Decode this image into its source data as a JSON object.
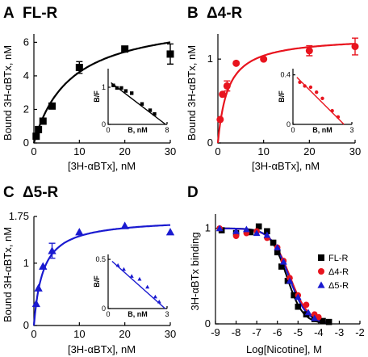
{
  "panels": [
    {
      "letter": "A",
      "title": "FL-R"
    },
    {
      "letter": "B",
      "title": "Δ4-R"
    },
    {
      "letter": "C",
      "title": "Δ5-R"
    },
    {
      "letter": "D",
      "title": ""
    }
  ],
  "colors": {
    "fl": "#000000",
    "d4": "#e8141e",
    "d5": "#1a1ad0"
  },
  "chart_data": [
    {
      "type": "scatter",
      "title": "FL-R",
      "xlabel": "[3H-αBTx], nM",
      "ylabel": "Bound 3H-αBTx, nM",
      "xlim": [
        0,
        30
      ],
      "ylim": [
        0,
        6.5
      ],
      "xticks": [
        0,
        10,
        20,
        30
      ],
      "yticks": [
        0,
        2,
        4,
        6
      ],
      "points": {
        "x": [
          0.5,
          1,
          2,
          4,
          10,
          20,
          30
        ],
        "y": [
          0.4,
          0.8,
          1.3,
          2.2,
          4.5,
          5.6,
          5.3
        ],
        "err": [
          0,
          0,
          0,
          0,
          0.35,
          0,
          0.6
        ]
      },
      "fit": {
        "Bmax": 7.6,
        "Kd": 8.0
      },
      "inset": {
        "xlabel": "B, nM",
        "ylabel": "B/F",
        "xlim": [
          0,
          8
        ],
        "ylim": [
          0,
          1.5
        ],
        "xticks": [
          0,
          8
        ],
        "yticks": [
          0,
          1
        ],
        "points": {
          "x": [
            0.7,
            1.2,
            1.8,
            2.4,
            3.2,
            4.6,
            5.7,
            6.3
          ],
          "y": [
            1.05,
            0.98,
            0.98,
            0.9,
            0.84,
            0.55,
            0.38,
            0.28
          ]
        },
        "line": {
          "x": [
            0.4,
            7.8
          ],
          "y": [
            1.12,
            0.0
          ]
        }
      }
    },
    {
      "type": "scatter",
      "title": "Δ4-R",
      "xlabel": "[3H-αBTx], nM",
      "ylabel": "Bound 3H-αBTx, nM",
      "xlim": [
        0,
        30
      ],
      "ylim": [
        0,
        1.3
      ],
      "xticks": [
        0,
        10,
        20,
        30
      ],
      "yticks": [
        0,
        1
      ],
      "points": {
        "x": [
          0.5,
          1,
          2,
          4,
          10,
          20,
          30
        ],
        "y": [
          0.28,
          0.58,
          0.68,
          0.95,
          1.0,
          1.1,
          1.15
        ],
        "err": [
          0,
          0,
          0.06,
          0,
          0,
          0.06,
          0.1
        ]
      },
      "fit": {
        "Bmax": 1.27,
        "Kd": 2.2
      },
      "inset": {
        "xlabel": "B, nM",
        "ylabel": "B/F",
        "xlim": [
          0,
          3
        ],
        "ylim": [
          0,
          0.45
        ],
        "xticks": [
          0,
          3
        ],
        "yticks": [
          0,
          0.4
        ],
        "points": {
          "x": [
            0.35,
            0.6,
            0.9,
            1.2,
            1.5,
            2.0,
            2.3
          ],
          "y": [
            0.34,
            0.31,
            0.3,
            0.26,
            0.21,
            0.11,
            0.06
          ]
        },
        "line": {
          "x": [
            0.2,
            2.6
          ],
          "y": [
            0.38,
            0.0
          ]
        }
      }
    },
    {
      "type": "scatter",
      "title": "Δ5-R",
      "xlabel": "[3H-αBTx], nM",
      "ylabel": "Bound 3H-αBTx, nM",
      "xlim": [
        0,
        30
      ],
      "ylim": [
        0,
        1.75
      ],
      "xticks": [
        0,
        10,
        20,
        30
      ],
      "yticks": [
        0,
        1,
        1.75
      ],
      "points": {
        "x": [
          0.5,
          1,
          2,
          4,
          10,
          20,
          30
        ],
        "y": [
          0.35,
          0.6,
          0.95,
          1.2,
          1.5,
          1.6,
          1.5
        ],
        "err": [
          0,
          0,
          0,
          0.12,
          0,
          0,
          0
        ]
      },
      "fit": {
        "Bmax": 1.72,
        "Kd": 2.0
      },
      "inset": {
        "xlabel": "B, nM",
        "ylabel": "B/F",
        "xlim": [
          0,
          3
        ],
        "ylim": [
          0,
          0.55
        ],
        "xticks": [
          0,
          3
        ],
        "yticks": [
          0,
          0.5
        ],
        "points": {
          "x": [
            0.5,
            0.8,
            1.2,
            1.6,
            2.0,
            2.4,
            2.6
          ],
          "y": [
            0.44,
            0.4,
            0.33,
            0.3,
            0.22,
            0.12,
            0.07
          ]
        },
        "line": {
          "x": [
            0.2,
            2.9
          ],
          "y": [
            0.48,
            0.0
          ]
        }
      }
    },
    {
      "type": "scatter",
      "title": "",
      "xlabel": "Log[Nicotine], M",
      "ylabel": "3H-αBTx binding",
      "xlim": [
        -9,
        -2
      ],
      "ylim": [
        0,
        1.15
      ],
      "xticks": [
        -9,
        -8,
        -7,
        -6,
        -5,
        -4,
        -3,
        -2
      ],
      "yticks": [
        0,
        1
      ],
      "legend": "right",
      "series": [
        {
          "name": "FL-R",
          "color": "#000000",
          "marker": "square",
          "x": [
            -8.7,
            -8,
            -7.3,
            -6.9,
            -6.5,
            -6.2,
            -6,
            -5.8,
            -5.5,
            -5.2,
            -5,
            -4.6,
            -4.2,
            -3.8,
            -3.5
          ],
          "y": [
            0.98,
            0.95,
            0.96,
            1.02,
            0.97,
            0.85,
            0.75,
            0.6,
            0.45,
            0.3,
            0.18,
            0.1,
            0.05,
            0.03,
            0.02
          ]
        },
        {
          "name": "Δ4-R",
          "color": "#e8141e",
          "marker": "circle",
          "x": [
            -8.8,
            -8,
            -7.5,
            -7,
            -6.5,
            -6,
            -5.7,
            -5.4,
            -5,
            -4.6,
            -4.2,
            -4
          ],
          "y": [
            1.0,
            0.92,
            0.95,
            0.97,
            0.9,
            0.8,
            0.66,
            0.48,
            0.3,
            0.2,
            0.1,
            0.07
          ]
        },
        {
          "name": "Δ5-R",
          "color": "#1a1ad0",
          "marker": "triangle",
          "x": [
            -8.8,
            -8,
            -7.5,
            -7,
            -6.5,
            -6,
            -5.7,
            -5.4,
            -5,
            -4.5,
            -4.2
          ],
          "y": [
            1.0,
            0.97,
            0.99,
            0.95,
            0.93,
            0.8,
            0.65,
            0.45,
            0.28,
            0.12,
            0.06
          ]
        }
      ],
      "fits": [
        {
          "color": "#000000",
          "ic50log": -5.55,
          "hill": 1.1
        },
        {
          "color": "#e8141e",
          "ic50log": -5.4,
          "hill": 0.95
        },
        {
          "color": "#1a1ad0",
          "ic50log": -5.45,
          "hill": 1.0
        }
      ]
    }
  ]
}
